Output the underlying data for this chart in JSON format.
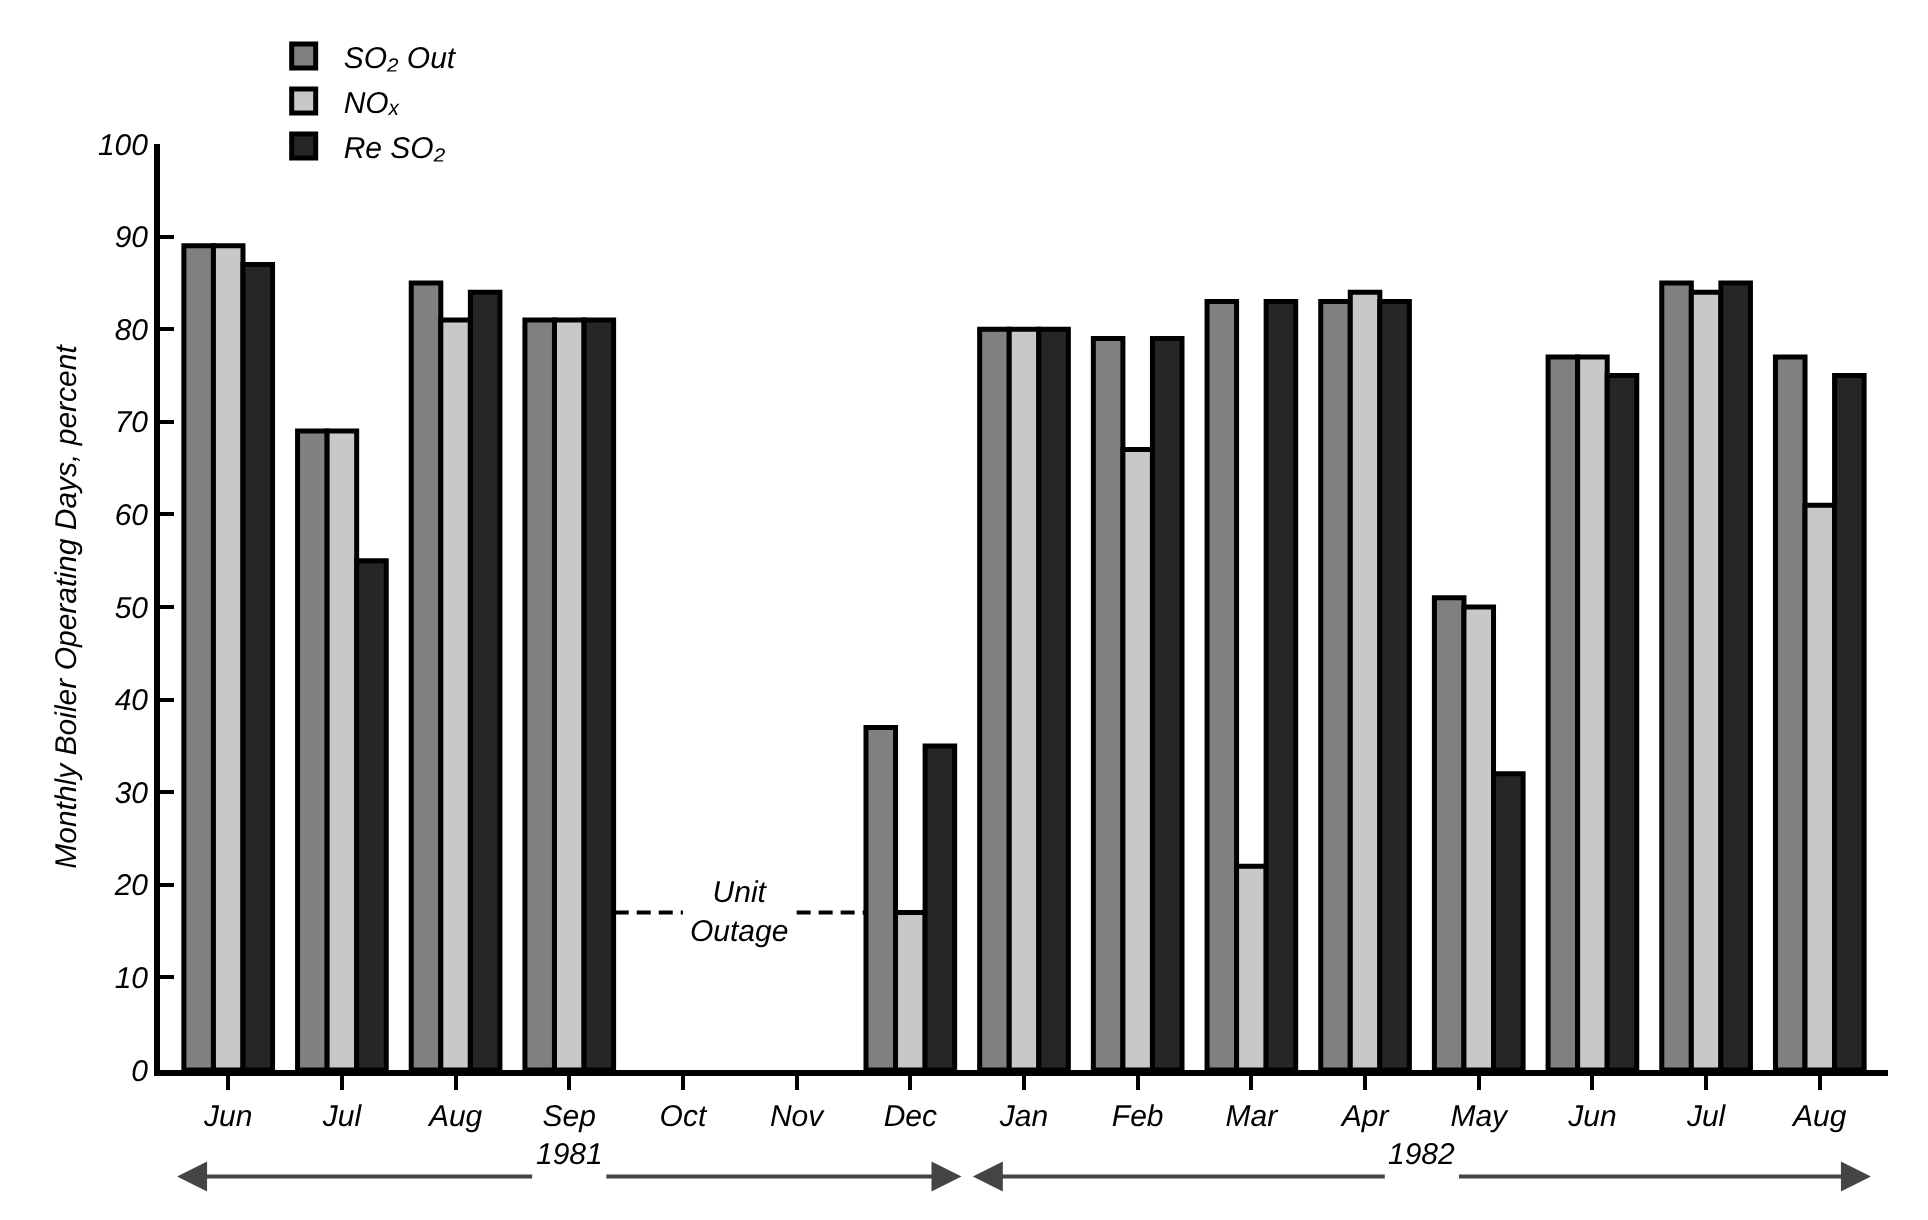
{
  "chart_data": {
    "type": "bar",
    "ylabel": "Monthly Boiler Operating Days, percent",
    "categories": [
      "Jun",
      "Jul",
      "Aug",
      "Sep",
      "Oct",
      "Nov",
      "Dec",
      "Jan",
      "Feb",
      "Mar",
      "Apr",
      "May",
      "Jun",
      "Jul",
      "Aug"
    ],
    "series": [
      {
        "name": "SO₂ Out",
        "color": "#808080",
        "values": [
          89,
          69,
          85,
          81,
          null,
          null,
          37,
          80,
          79,
          83,
          83,
          51,
          77,
          85,
          77
        ]
      },
      {
        "name": "NOₓ",
        "color": "#c8c8c8",
        "values": [
          89,
          69,
          81,
          81,
          null,
          null,
          17,
          80,
          67,
          22,
          84,
          50,
          77,
          84,
          61
        ]
      },
      {
        "name": "Re SO₂",
        "color": "#262626",
        "values": [
          87,
          55,
          84,
          81,
          null,
          null,
          35,
          80,
          79,
          83,
          83,
          32,
          75,
          85,
          75
        ]
      }
    ],
    "ylim": [
      0,
      100
    ],
    "yticks": [
      0,
      10,
      20,
      30,
      40,
      50,
      60,
      70,
      80,
      90,
      100
    ],
    "legend": "top left",
    "annotations": [
      "Unit Outage",
      "1981",
      "1982"
    ]
  }
}
